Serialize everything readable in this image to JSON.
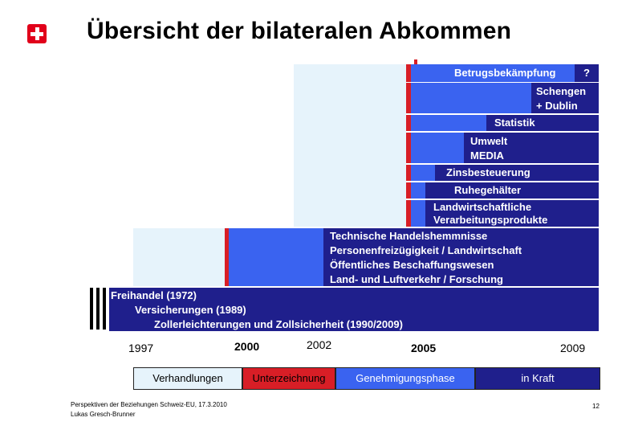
{
  "title": "Übersicht der bilateralen Abkommen",
  "bars": {
    "betrug": "Betrugsbekämpfung",
    "betrug_q": "?",
    "schengen_1": "Schengen",
    "schengen_2": "+ Dublin",
    "statistik": "Statistik",
    "umwelt_1": "Umwelt",
    "umwelt_2": "MEDIA",
    "zins": "Zinsbesteuerung",
    "ruhe": "Ruhegehälter",
    "landw_1": "Landwirtschaftliche",
    "landw_2": "Verarbeitungsprodukte",
    "bil1_1": "Technische Handelshemmnisse",
    "bil1_2": "Personenfreizügigkeit / Landwirtschaft",
    "bil1_3": "Öffentliches Beschaffungswesen",
    "bil1_4": "Land- und Luftverkehr  /  Forschung",
    "frei_1": "Freihandel (1972)",
    "frei_2": "Versicherungen (1989)",
    "frei_3": "Zollerleichterungen und Zollsicherheit (1990/2009)"
  },
  "years": {
    "y1997": "1997",
    "y2000": "2000",
    "y2002": "2002",
    "y2005": "2005",
    "y2009": "2009"
  },
  "legend": {
    "verhandlungen": "Verhandlungen",
    "unterzeichnung": "Unterzeichnung",
    "genehmigung": "Genehmigungsphase",
    "kraft": "in Kraft"
  },
  "colors": {
    "negotiation": "#e6f3fb",
    "signature": "#d81e26",
    "approval": "#3a63f0",
    "in_force": "#1f1f8c"
  },
  "footer": {
    "line1": "Perspektiven der Beziehungen Schweiz-EU, 17.3.2010",
    "line2": "Lukas Gresch-Brunner",
    "page": "12"
  }
}
